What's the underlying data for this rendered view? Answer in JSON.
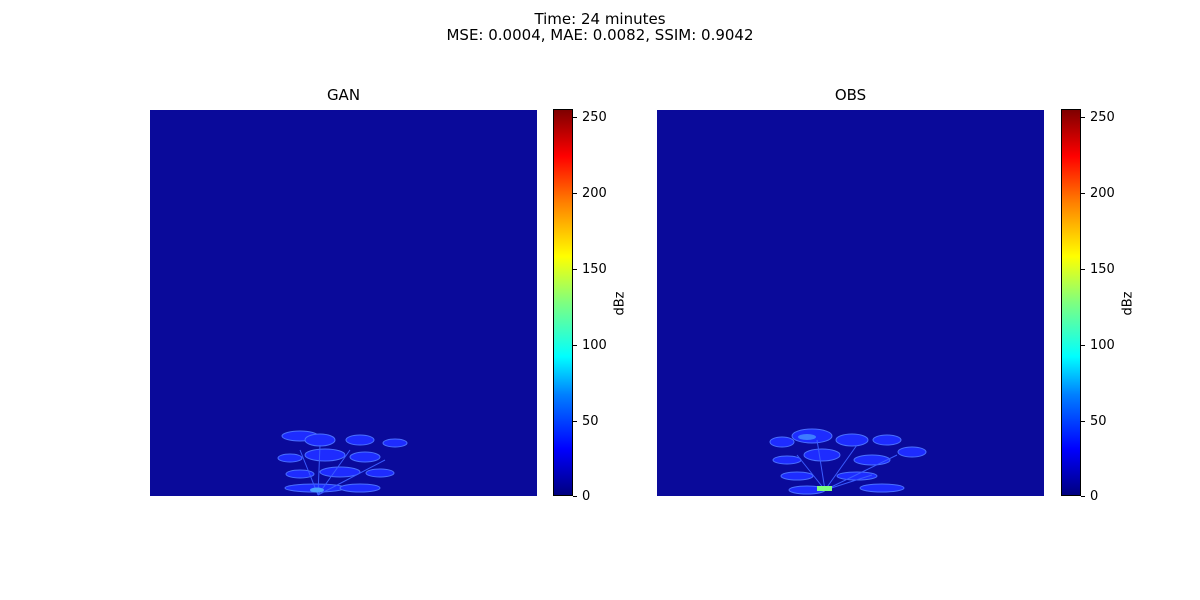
{
  "figure": {
    "title_line1": "Time: 24 minutes",
    "title_line2": "MSE: 0.0004, MAE: 0.0082, SSIM: 0.9042"
  },
  "chart_data": [
    {
      "type": "heatmap",
      "title": "GAN",
      "colormap": "jet",
      "colorbar": {
        "label": "dBz",
        "range": [
          0,
          255
        ],
        "ticks": [
          0,
          50,
          100,
          150,
          200,
          250
        ]
      },
      "background_level": 10,
      "feature": "plant-shaped echo near bottom center, values mostly 20-60"
    },
    {
      "type": "heatmap",
      "title": "OBS",
      "colormap": "jet",
      "colorbar": {
        "label": "dBz",
        "range": [
          0,
          255
        ],
        "ticks": [
          0,
          50,
          100,
          150,
          200,
          250
        ]
      },
      "background_level": 10,
      "feature": "plant-shaped echo near bottom center, values mostly 20-60, small patch near 130"
    }
  ],
  "colors": {
    "background_field": "#0a0a9a",
    "echo_low": "#1a1aff",
    "echo_mid": "#3a6aff",
    "echo_high": "#7fff7f"
  }
}
